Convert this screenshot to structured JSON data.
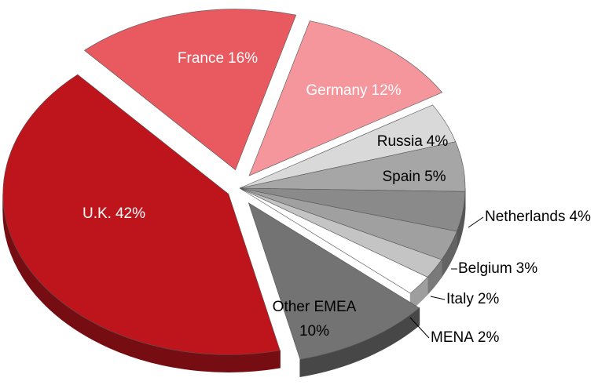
{
  "chart_data": {
    "type": "pie",
    "categories": [
      "France",
      "Germany",
      "Russia",
      "Spain",
      "Netherlands",
      "Belgium",
      "Italy",
      "MENA",
      "Other EMEA",
      "U.K."
    ],
    "values": [
      16,
      12,
      4,
      5,
      4,
      3,
      2,
      2,
      10,
      42
    ],
    "value_labels": [
      "16%",
      "12%",
      "4%",
      "5%",
      "4%",
      "3%",
      "2%",
      "2%",
      "10%",
      "42%"
    ],
    "colors": [
      "#e85a60",
      "#f4969b",
      "#d9d9d9",
      "#a6a6a6",
      "#8a8a8a",
      "#a0a0a0",
      "#c4c4c4",
      "#ffffff",
      "#737373",
      "#be151d"
    ]
  }
}
